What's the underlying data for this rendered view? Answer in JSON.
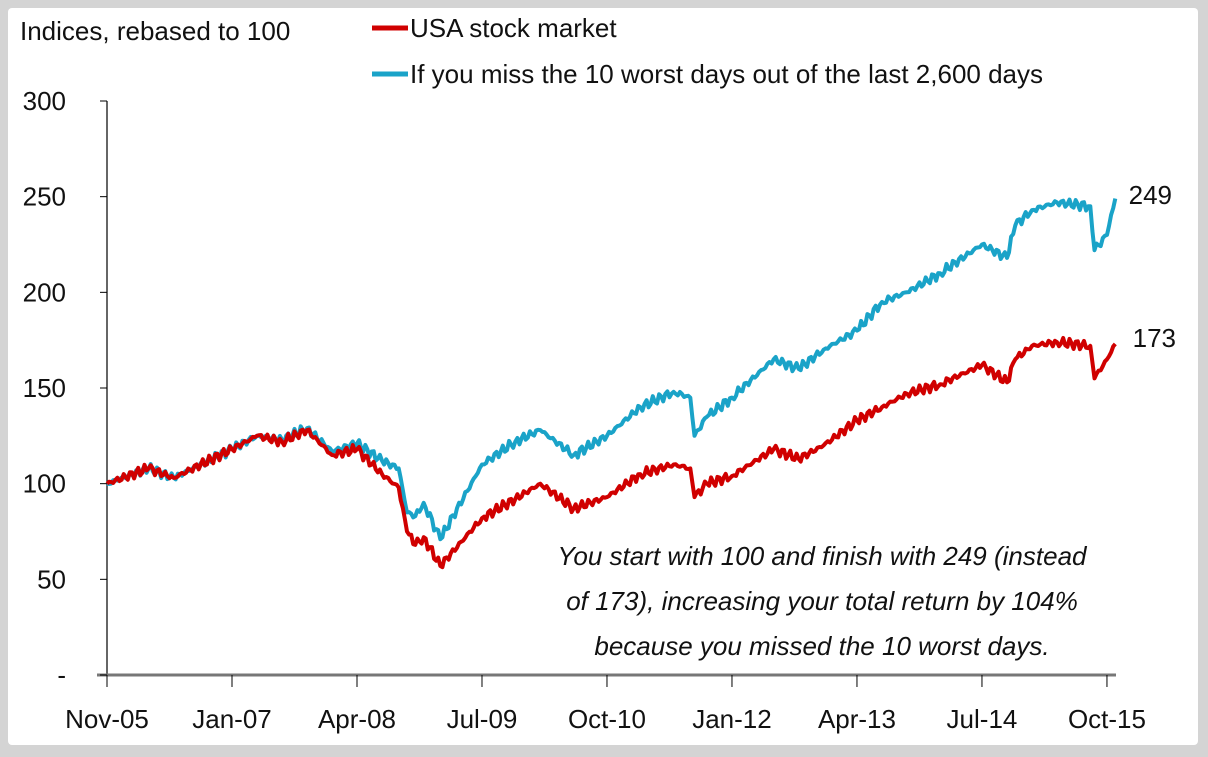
{
  "chart_data": {
    "type": "line",
    "ylabel": "Indices, rebased to 100",
    "ylim": [
      0,
      300
    ],
    "yticks": [
      0,
      50,
      100,
      150,
      200,
      250,
      300
    ],
    "ytick_labels": [
      "-",
      "50",
      "100",
      "150",
      "200",
      "250",
      "300"
    ],
    "x_unit": "months since Nov-05",
    "xlim": [
      0,
      121
    ],
    "xticks": [
      0,
      15,
      30,
      45,
      60,
      75,
      90,
      105,
      120
    ],
    "xtick_labels": [
      "Nov-05",
      "Jan-07",
      "Apr-08",
      "Jul-09",
      "Oct-10",
      "Jan-12",
      "Apr-13",
      "Jul-14",
      "Oct-15"
    ],
    "legend_placement": "top",
    "series": [
      {
        "name": "USA stock market",
        "color": "#d00000",
        "end_label": "173",
        "x": [
          0,
          5,
          8,
          15,
          18,
          21,
          24,
          27,
          30,
          33,
          35,
          36,
          37,
          38,
          40,
          45,
          49,
          52,
          56,
          60,
          64,
          68,
          70,
          70.5,
          72,
          75,
          80,
          83,
          86,
          90,
          93,
          96,
          100,
          105,
          108,
          109,
          111,
          114,
          118,
          118.5,
          120,
          121
        ],
        "y": [
          100,
          108,
          103,
          118,
          125,
          122,
          128,
          115,
          118,
          105,
          98,
          75,
          68,
          72,
          57,
          82,
          92,
          100,
          87,
          93,
          105,
          110,
          108,
          93,
          100,
          104,
          118,
          113,
          120,
          133,
          140,
          147,
          152,
          162,
          153,
          165,
          172,
          174,
          172,
          155,
          165,
          173
        ]
      },
      {
        "name": "If you miss the 10 worst days out of the last 2,600 days",
        "color": "#1aa3c8",
        "end_label": "249",
        "x": [
          0,
          5,
          8,
          15,
          18,
          21,
          24,
          27,
          30,
          33,
          35,
          36,
          37,
          38,
          40,
          45,
          49,
          52,
          56,
          60,
          64,
          68,
          70,
          70.5,
          72,
          75,
          80,
          83,
          86,
          90,
          93,
          96,
          100,
          105,
          108,
          109,
          111,
          114,
          118,
          118.5,
          120,
          121
        ],
        "y": [
          100,
          108,
          103,
          118,
          125,
          123,
          129,
          117,
          121,
          112,
          108,
          85,
          83,
          90,
          71,
          110,
          122,
          128,
          115,
          125,
          140,
          148,
          145,
          125,
          135,
          145,
          165,
          160,
          170,
          180,
          195,
          200,
          210,
          225,
          218,
          235,
          243,
          247,
          245,
          222,
          230,
          249
        ]
      }
    ],
    "annotation": [
      "You start with 100 and finish with 249 (instead",
      "of 173), increasing your total return by 104%",
      "because you missed the 10 worst days."
    ]
  }
}
